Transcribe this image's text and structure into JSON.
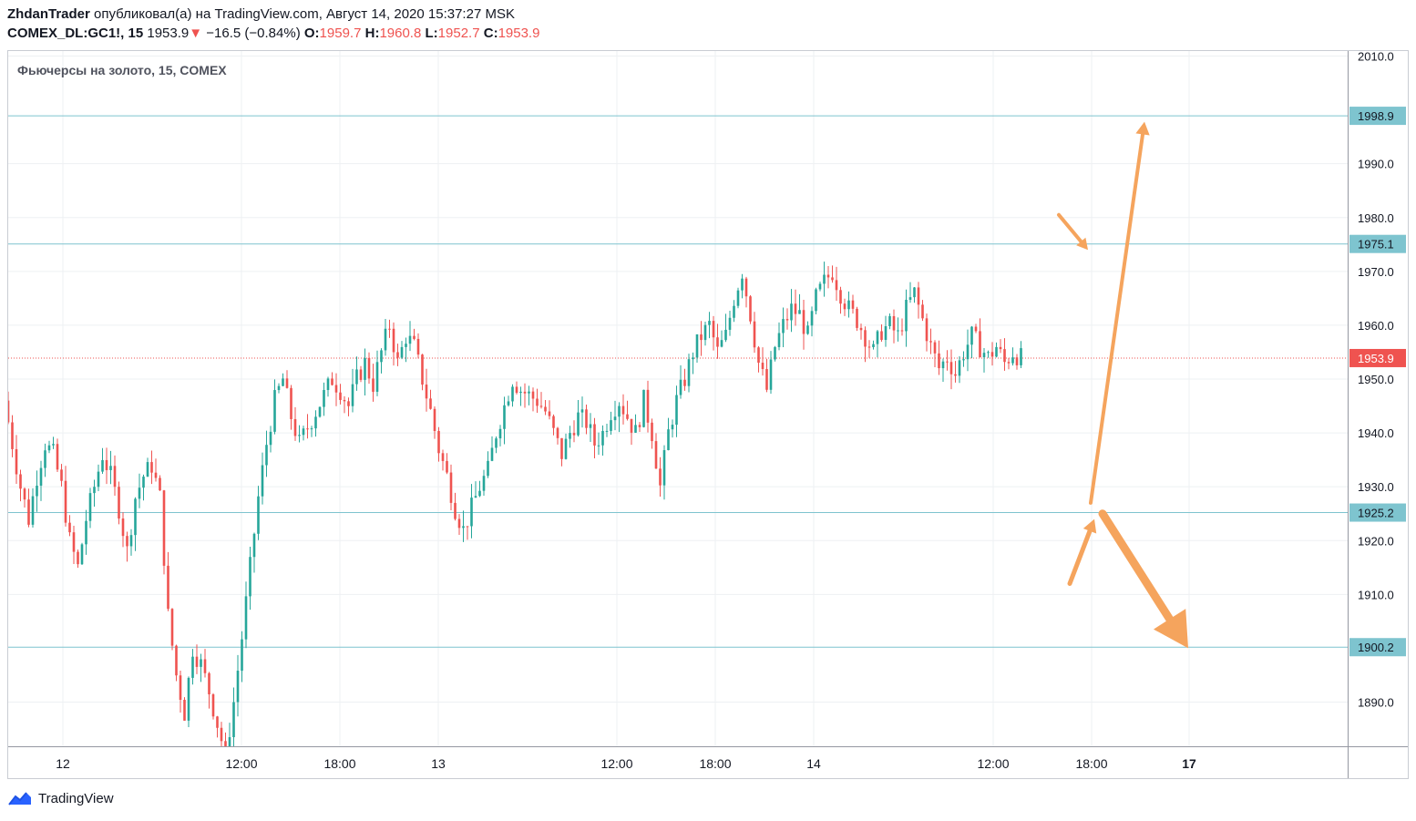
{
  "header": {
    "author": "ZhdanTrader",
    "published_text": " опубликовал(а) на TradingView.com, Август 14, 2020 15:37:27 MSK",
    "symbol": "COMEX_DL:GC1!, 15",
    "last": "1953.9",
    "change": "−16.5 (−0.84%)",
    "o_label": "O:",
    "o_value": "1959.7",
    "h_label": "H:",
    "h_value": "1960.8",
    "l_label": "L:",
    "l_value": "1952.7",
    "c_label": "C:",
    "c_value": "1953.9"
  },
  "footer": {
    "brand": "TradingView",
    "logo_icon": "tradingview-logo-icon"
  },
  "colors": {
    "up": "#26a69a",
    "down": "#ef5350",
    "grid": "#eef0f3",
    "level_line": "#7ec4cf",
    "level_label_bg": "#7ec4cf",
    "price_label_bg": "#ef5350",
    "arrow": "#f5a45d",
    "axis_text": "#131722"
  },
  "chart_data": {
    "type": "candlestick",
    "title": "Фьючерсы на золото, 15, COMEX",
    "ylim": [
      1882,
      2012
    ],
    "y_ticks": [
      "2010.0",
      "1990.0",
      "1980.0",
      "1970.0",
      "1960.0",
      "1950.0",
      "1940.0",
      "1930.0",
      "1920.0",
      "1910.0",
      "1890.0"
    ],
    "y_tick_values": [
      2010,
      1990,
      1980,
      1970,
      1960,
      1950,
      1940,
      1930,
      1920,
      1910,
      1890
    ],
    "x_ticks": [
      {
        "label": "12",
        "bold": false
      },
      {
        "label": "12:00",
        "bold": false
      },
      {
        "label": "18:00",
        "bold": false
      },
      {
        "label": "13",
        "bold": false
      },
      {
        "label": "12:00",
        "bold": false
      },
      {
        "label": "18:00",
        "bold": false
      },
      {
        "label": "14",
        "bold": false
      },
      {
        "label": "12:00",
        "bold": false
      },
      {
        "label": "18:00",
        "bold": false
      },
      {
        "label": "17",
        "bold": true
      }
    ],
    "levels": [
      {
        "value": 1998.9,
        "label": "1998.9"
      },
      {
        "value": 1975.1,
        "label": "1975.1"
      },
      {
        "value": 1925.2,
        "label": "1925.2"
      },
      {
        "value": 1900.2,
        "label": "1900.2"
      }
    ],
    "last_price": {
      "value": 1953.9,
      "label": "1953.9"
    },
    "path": [
      1946,
      1938,
      1930,
      1924,
      1932,
      1938,
      1936,
      1930,
      1920,
      1915,
      1924,
      1930,
      1936,
      1932,
      1926,
      1918,
      1928,
      1932,
      1934,
      1928,
      1906,
      1895,
      1888,
      1900,
      1897,
      1892,
      1886,
      1880,
      1890,
      1902,
      1915,
      1928,
      1938,
      1946,
      1950,
      1943,
      1938,
      1941,
      1944,
      1947,
      1950,
      1948,
      1945,
      1950,
      1953,
      1949,
      1955,
      1960,
      1953,
      1958,
      1956,
      1950,
      1944,
      1937,
      1932,
      1926,
      1922,
      1926,
      1930,
      1933,
      1940,
      1945,
      1950,
      1948,
      1947,
      1946,
      1944,
      1940,
      1936,
      1940,
      1943,
      1942,
      1938,
      1940,
      1944,
      1946,
      1943,
      1940,
      1946,
      1940,
      1930,
      1940,
      1946,
      1950,
      1955,
      1958,
      1960,
      1955,
      1958,
      1965,
      1970,
      1962,
      1953,
      1948,
      1956,
      1960,
      1963,
      1962,
      1958,
      1965,
      1968,
      1970,
      1966,
      1963,
      1961,
      1958,
      1955,
      1959,
      1960,
      1958,
      1963,
      1966,
      1961,
      1956,
      1952,
      1954,
      1951,
      1955,
      1958,
      1956,
      1954,
      1956,
      1953,
      1955,
      1953.9
    ],
    "arrows": [
      {
        "from": [
          1947,
          1927
        ],
        "to": [
          1999,
          1997.8
        ],
        "weight": "thin"
      },
      {
        "from": [
          1939,
          1980.5
        ],
        "to": [
          1999,
          1974
        ],
        "weight": "thin"
      },
      {
        "from": [
          1940,
          1912
        ],
        "to": [
          1999,
          1924
        ],
        "weight": "medium"
      },
      {
        "from": [
          1942,
          1925
        ],
        "to": [
          1999,
          1900
        ],
        "weight": "bold"
      }
    ]
  }
}
